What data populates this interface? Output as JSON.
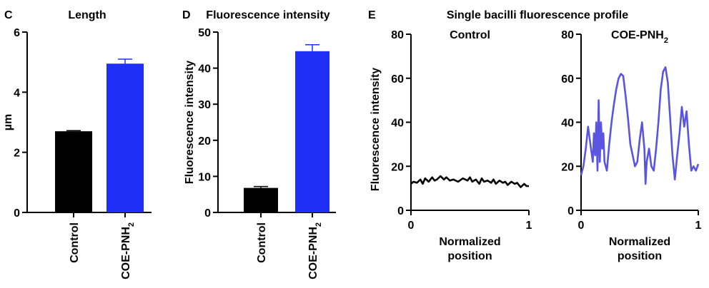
{
  "figure_title": "Single bacilli fluorescence profile",
  "colors": {
    "control": "#000000",
    "coe": "#1f2ff5",
    "profile_coe": "#5a55e0",
    "profile_control": "#000000"
  },
  "chart_data": [
    {
      "panel": "C",
      "type": "bar",
      "title": "Length",
      "xlabel": "",
      "ylabel": "µm",
      "ylim": [
        0,
        6
      ],
      "yticks": [
        0,
        2,
        4,
        6
      ],
      "categories": [
        "Control",
        "COE-PNH2"
      ],
      "category_labels": [
        {
          "main": "Control",
          "sub": ""
        },
        {
          "main": "COE-PNH",
          "sub": "2"
        }
      ],
      "values": [
        2.7,
        4.95
      ],
      "errors": [
        0.02,
        0.15
      ],
      "bar_colors": [
        "#000000",
        "#1f2ff5"
      ]
    },
    {
      "panel": "D",
      "type": "bar",
      "title": "Fluorescence intensity",
      "xlabel": "",
      "ylabel": "Fluorescence intensity",
      "ylim": [
        0,
        50
      ],
      "yticks": [
        0,
        10,
        20,
        30,
        40,
        50
      ],
      "categories": [
        "Control",
        "COE-PNH2"
      ],
      "category_labels": [
        {
          "main": "Control",
          "sub": ""
        },
        {
          "main": "COE-PNH",
          "sub": "2"
        }
      ],
      "values": [
        6.8,
        44.7
      ],
      "errors": [
        0.4,
        1.8
      ],
      "bar_colors": [
        "#000000",
        "#1f2ff5"
      ]
    },
    {
      "panel": "E",
      "type": "line",
      "title": "Control",
      "title_main": "Control",
      "title_sub": "",
      "xlabel": "Normalized position",
      "xlabel_lines": [
        "Normalized",
        "position"
      ],
      "ylabel": "Fluorescence intensity",
      "xlim": [
        0,
        1
      ],
      "ylim": [
        0,
        80
      ],
      "xticks": [
        0,
        1
      ],
      "yticks": [
        0,
        20,
        40,
        60,
        80
      ],
      "color": "#000000",
      "x": [
        0,
        0.02,
        0.05,
        0.08,
        0.1,
        0.12,
        0.15,
        0.18,
        0.2,
        0.22,
        0.25,
        0.28,
        0.3,
        0.33,
        0.36,
        0.4,
        0.44,
        0.48,
        0.5,
        0.52,
        0.55,
        0.58,
        0.6,
        0.62,
        0.65,
        0.68,
        0.7,
        0.72,
        0.75,
        0.78,
        0.8,
        0.82,
        0.85,
        0.88,
        0.9,
        0.93,
        0.96,
        0.98,
        1.0
      ],
      "y": [
        12,
        13,
        12.5,
        14,
        12,
        14.5,
        13,
        15,
        13.5,
        14,
        15.5,
        14,
        15,
        13.5,
        14,
        13,
        14.5,
        13.5,
        15,
        13,
        14,
        12,
        14.5,
        13,
        13.5,
        12.5,
        14,
        12,
        13.5,
        12.5,
        13,
        11.5,
        13,
        12,
        12.5,
        10.5,
        12,
        11,
        11
      ]
    },
    {
      "panel": "E",
      "type": "line",
      "title": "COE-PNH2",
      "title_main": "COE-PNH",
      "title_sub": "2",
      "xlabel": "Normalized position",
      "xlabel_lines": [
        "Normalized",
        "position"
      ],
      "ylabel": "",
      "xlim": [
        0,
        1
      ],
      "ylim": [
        0,
        80
      ],
      "xticks": [
        0,
        1
      ],
      "yticks": [
        0,
        20,
        40,
        60,
        80
      ],
      "color": "#5a55e0",
      "x": [
        0,
        0.02,
        0.04,
        0.06,
        0.08,
        0.1,
        0.11,
        0.12,
        0.13,
        0.14,
        0.15,
        0.16,
        0.17,
        0.18,
        0.19,
        0.2,
        0.22,
        0.24,
        0.26,
        0.28,
        0.3,
        0.32,
        0.34,
        0.36,
        0.38,
        0.4,
        0.42,
        0.44,
        0.46,
        0.48,
        0.5,
        0.52,
        0.54,
        0.55,
        0.56,
        0.58,
        0.6,
        0.62,
        0.64,
        0.66,
        0.68,
        0.7,
        0.72,
        0.74,
        0.76,
        0.78,
        0.8,
        0.82,
        0.84,
        0.86,
        0.88,
        0.9,
        0.92,
        0.94,
        0.96,
        0.98,
        1.0
      ],
      "y": [
        16,
        20,
        28,
        38,
        30,
        22,
        35,
        25,
        40,
        18,
        50,
        22,
        40,
        28,
        35,
        22,
        18,
        30,
        40,
        48,
        55,
        60,
        62,
        61,
        52,
        42,
        30,
        25,
        20,
        22,
        32,
        40,
        28,
        12,
        22,
        28,
        20,
        18,
        28,
        40,
        55,
        63,
        65,
        58,
        42,
        25,
        14,
        25,
        35,
        47,
        38,
        45,
        30,
        18,
        20,
        18,
        21
      ]
    }
  ]
}
